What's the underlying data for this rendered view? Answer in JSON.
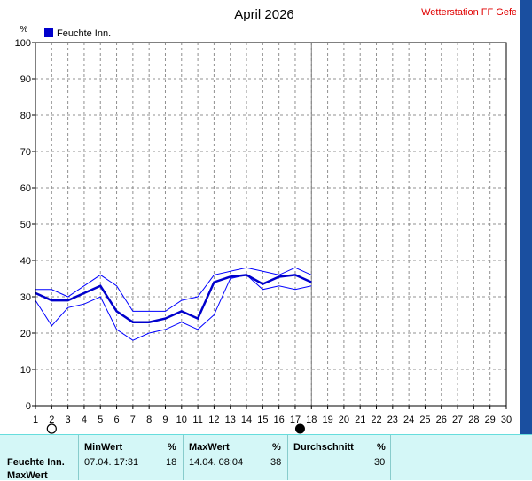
{
  "station": "Wetterstation FF Gefell",
  "chart_data": {
    "type": "line",
    "title": "April 2026",
    "ylabel": "%",
    "ylim": [
      0,
      100
    ],
    "yticks": [
      0,
      10,
      20,
      30,
      40,
      50,
      60,
      70,
      80,
      90,
      100
    ],
    "xlim": [
      1,
      30
    ],
    "x": [
      1,
      2,
      3,
      4,
      5,
      6,
      7,
      8,
      9,
      10,
      11,
      12,
      13,
      14,
      15,
      16,
      17,
      18,
      19,
      20,
      21,
      22,
      23,
      24,
      25,
      26,
      27,
      28,
      29,
      30
    ],
    "grid": true,
    "legend_position": "top-left",
    "current_day_marker": 18,
    "moon_phases": [
      {
        "day": 2,
        "phase": "full-moon"
      },
      {
        "day": 17.3,
        "phase": "new-moon"
      }
    ],
    "series": [
      {
        "name": "Feuchte Inn.",
        "role": "average",
        "x": [
          1,
          2,
          3,
          4,
          5,
          6,
          7,
          8,
          9,
          10,
          11,
          12,
          13,
          14,
          15,
          16,
          17,
          18
        ],
        "values": [
          31,
          29,
          29,
          31,
          33,
          26,
          23,
          23,
          24,
          26,
          24,
          34,
          35.5,
          36,
          33.5,
          35.5,
          36,
          34
        ]
      },
      {
        "role": "max",
        "x": [
          1,
          2,
          3,
          4,
          5,
          6,
          7,
          8,
          9,
          10,
          11,
          12,
          13,
          14,
          15,
          16,
          17,
          18
        ],
        "values": [
          32,
          32,
          30,
          33,
          36,
          33,
          26,
          26,
          26,
          29,
          30,
          36,
          37,
          38,
          37,
          36,
          38,
          36
        ]
      },
      {
        "role": "min",
        "x": [
          1,
          2,
          3,
          4,
          5,
          6,
          7,
          8,
          9,
          10,
          11,
          12,
          13,
          14,
          15,
          16,
          17,
          18
        ],
        "values": [
          29,
          22,
          27,
          28,
          30,
          21,
          18,
          20,
          21,
          23,
          21,
          25,
          35,
          36,
          32,
          33,
          32,
          33
        ]
      }
    ],
    "colors": {
      "series": "#0000ff",
      "grid": "#909090",
      "axis": "#000000",
      "marker_line": "#808080"
    }
  },
  "stats": {
    "headers": {
      "min": "MinWert",
      "max": "MaxWert",
      "avg": "Durchschnitt",
      "unit": "%"
    },
    "rows": [
      {
        "label": "Feuchte Inn.",
        "min_time": "07.04.  17:31",
        "min_value": "18",
        "max_time": "14.04.  08:04",
        "max_value": "38",
        "avg_value": "30"
      }
    ],
    "next_row_label": "MaxWert"
  }
}
